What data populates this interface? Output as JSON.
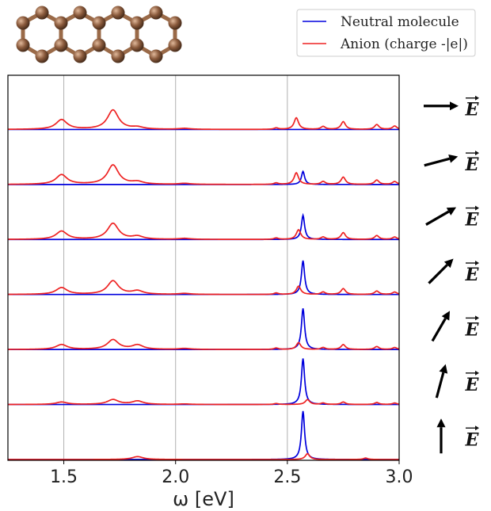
{
  "chart_data": {
    "type": "line",
    "title": "",
    "xlabel": "ω [eV]",
    "ylabel": "",
    "xlim": [
      1.25,
      3.0
    ],
    "xticks": [
      1.5,
      2.0,
      2.5,
      3.0
    ],
    "xtick_labels": [
      "1.5",
      "2.0",
      "2.5",
      "3.0"
    ],
    "grid_x": true,
    "legend": {
      "placement": "top-right",
      "entries": [
        {
          "label": "Neutral molecule",
          "color": "#0000dd"
        },
        {
          "label": "Anion (charge -|e|)",
          "color": "#ee2222"
        }
      ]
    },
    "field_label": "E",
    "panels": [
      {
        "field_angle_deg": 0,
        "neutral": [
          [
            2.57,
            0.0
          ]
        ],
        "anion": [
          [
            1.49,
            0.2
          ],
          [
            1.72,
            0.4
          ],
          [
            1.83,
            0.04
          ],
          [
            2.04,
            0.02
          ],
          [
            2.45,
            0.03
          ],
          [
            2.54,
            0.24
          ],
          [
            2.66,
            0.06
          ],
          [
            2.75,
            0.16
          ],
          [
            2.9,
            0.1
          ],
          [
            2.98,
            0.07
          ]
        ]
      },
      {
        "field_angle_deg": 15,
        "neutral": [
          [
            2.57,
            0.27
          ]
        ],
        "anion": [
          [
            1.49,
            0.2
          ],
          [
            1.72,
            0.4
          ],
          [
            1.83,
            0.05
          ],
          [
            2.04,
            0.02
          ],
          [
            2.45,
            0.03
          ],
          [
            2.54,
            0.24
          ],
          [
            2.66,
            0.06
          ],
          [
            2.75,
            0.15
          ],
          [
            2.9,
            0.09
          ],
          [
            2.98,
            0.06
          ]
        ]
      },
      {
        "field_angle_deg": 30,
        "neutral": [
          [
            2.57,
            0.5
          ]
        ],
        "anion": [
          [
            1.49,
            0.17
          ],
          [
            1.72,
            0.33
          ],
          [
            1.83,
            0.06
          ],
          [
            2.04,
            0.02
          ],
          [
            2.45,
            0.03
          ],
          [
            2.55,
            0.2
          ],
          [
            2.66,
            0.05
          ],
          [
            2.75,
            0.14
          ],
          [
            2.9,
            0.08
          ],
          [
            2.98,
            0.05
          ]
        ]
      },
      {
        "field_angle_deg": 45,
        "neutral": [
          [
            2.57,
            0.7
          ]
        ],
        "anion": [
          [
            1.49,
            0.14
          ],
          [
            1.72,
            0.28
          ],
          [
            1.83,
            0.07
          ],
          [
            2.04,
            0.02
          ],
          [
            2.45,
            0.03
          ],
          [
            2.55,
            0.17
          ],
          [
            2.66,
            0.05
          ],
          [
            2.75,
            0.12
          ],
          [
            2.9,
            0.07
          ],
          [
            2.98,
            0.05
          ]
        ]
      },
      {
        "field_angle_deg": 60,
        "neutral": [
          [
            2.57,
            0.85
          ]
        ],
        "anion": [
          [
            1.49,
            0.1
          ],
          [
            1.72,
            0.2
          ],
          [
            1.83,
            0.09
          ],
          [
            2.04,
            0.02
          ],
          [
            2.45,
            0.03
          ],
          [
            2.55,
            0.14
          ],
          [
            2.66,
            0.04
          ],
          [
            2.75,
            0.1
          ],
          [
            2.9,
            0.06
          ],
          [
            2.98,
            0.04
          ]
        ]
      },
      {
        "field_angle_deg": 75,
        "neutral": [
          [
            2.57,
            0.95
          ]
        ],
        "anion": [
          [
            1.49,
            0.05
          ],
          [
            1.72,
            0.1
          ],
          [
            1.83,
            0.07
          ],
          [
            2.04,
            0.01
          ],
          [
            2.45,
            0.02
          ],
          [
            2.59,
            0.1
          ],
          [
            2.66,
            0.03
          ],
          [
            2.75,
            0.05
          ],
          [
            2.9,
            0.04
          ],
          [
            2.98,
            0.03
          ]
        ]
      },
      {
        "field_angle_deg": 90,
        "neutral": [
          [
            2.57,
            1.0
          ]
        ],
        "anion": [
          [
            1.83,
            0.06
          ],
          [
            2.59,
            0.12
          ],
          [
            2.85,
            0.03
          ]
        ]
      }
    ]
  },
  "colors": {
    "neutral": "#0000dd",
    "anion": "#ee2222",
    "atom": "#8a5a3c",
    "bond": "#9a6a48"
  },
  "inset": {
    "image": "acene-molecule-ball-and-stick"
  }
}
